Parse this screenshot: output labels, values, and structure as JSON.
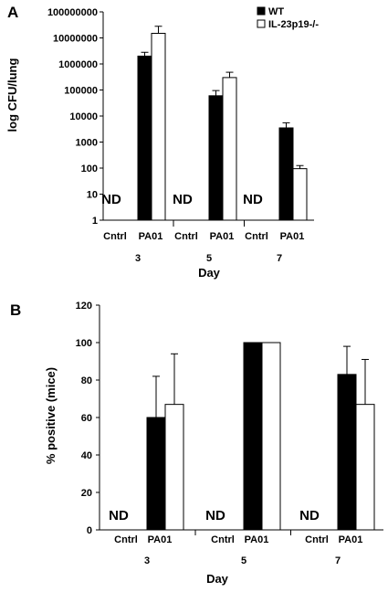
{
  "figure": {
    "legend": [
      {
        "name": "WT",
        "color": "#000000"
      },
      {
        "name": "IL-23p19-/-",
        "color": "#ffffff"
      }
    ]
  },
  "chart_data": [
    {
      "panel": "A",
      "type": "bar",
      "yscale": "log",
      "ylabel": "log CFU/lung",
      "xlabel": "Day",
      "ylim": [
        1,
        100000000
      ],
      "yticks": [
        "1",
        "10",
        "100",
        "1000",
        "10000",
        "100000",
        "1000000",
        "10000000",
        "100000000"
      ],
      "groups": [
        "3",
        "5",
        "7"
      ],
      "subcategories": [
        "Cntrl",
        "PA01"
      ],
      "not_detected_label": "ND",
      "series": [
        {
          "name": "WT",
          "values": [
            2000000,
            60000,
            3500
          ],
          "errors": [
            800000,
            35000,
            2000
          ]
        },
        {
          "name": "IL-23p19-/-",
          "values": [
            15000000,
            300000,
            95
          ],
          "errors": [
            13000000,
            180000,
            30
          ]
        }
      ]
    },
    {
      "panel": "B",
      "type": "bar",
      "yscale": "linear",
      "ylabel": "% positive (mice)",
      "xlabel": "Day",
      "ylim": [
        0,
        120
      ],
      "yticks": [
        "0",
        "20",
        "40",
        "60",
        "80",
        "100",
        "120"
      ],
      "groups": [
        "3",
        "5",
        "7"
      ],
      "subcategories": [
        "Cntrl",
        "PA01"
      ],
      "not_detected_label": "ND",
      "series": [
        {
          "name": "WT",
          "values": [
            60,
            100,
            83
          ],
          "errors": [
            22,
            0,
            15
          ]
        },
        {
          "name": "IL-23p19-/-",
          "values": [
            67,
            100,
            67
          ],
          "errors": [
            27,
            0,
            24
          ]
        }
      ]
    }
  ]
}
